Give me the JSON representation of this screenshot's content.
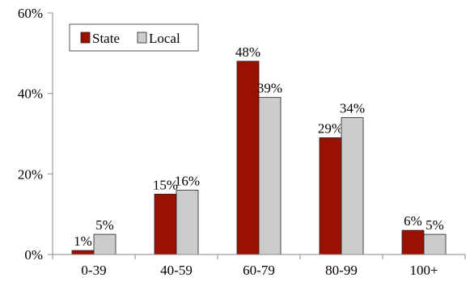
{
  "chart_data": {
    "type": "bar",
    "categories": [
      "0-39",
      "40-59",
      "60-79",
      "80-99",
      "100+"
    ],
    "series": [
      {
        "name": "State",
        "values": [
          1,
          15,
          48,
          29,
          6
        ],
        "labels": [
          "1%",
          "15%",
          "48%",
          "29%",
          "6%"
        ],
        "color": "#991100"
      },
      {
        "name": "Local",
        "values": [
          5,
          16,
          39,
          34,
          5
        ],
        "labels": [
          "5%",
          "16%",
          "39%",
          "34%",
          "5%"
        ],
        "color": "#cccccc"
      }
    ],
    "ylim": [
      0,
      60
    ],
    "yticks": [
      0,
      20,
      40,
      60
    ],
    "ytick_labels": [
      "0%",
      "20%",
      "40%",
      "60%"
    ],
    "legend_position": "top-left",
    "grid": false,
    "title": "",
    "xlabel": "",
    "ylabel": ""
  }
}
